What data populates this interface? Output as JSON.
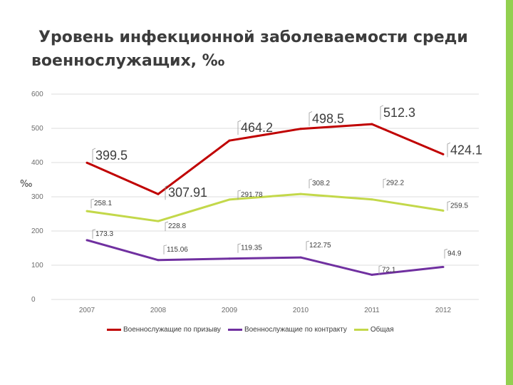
{
  "theme": {
    "accent_bar": "#92d050"
  },
  "title_line1": "Уровень инфекционной заболеваемости среди",
  "title_line2": "военнослужащих, ‰",
  "chart_data": {
    "type": "line",
    "title": "Уровень инфекционной заболеваемости среди военнослужащих, ‰",
    "ylabel": "‰",
    "xlabel": "",
    "x": [
      "2007",
      "2008",
      "2009",
      "2010",
      "2011",
      "2012"
    ],
    "ylim": [
      0,
      600
    ],
    "yticks": [
      0,
      100,
      200,
      300,
      400,
      500,
      600
    ],
    "grid": true,
    "legend_position": "bottom",
    "series": [
      {
        "name": "Военнослужащие по призыву",
        "color": "#c00000",
        "values": [
          399.5,
          307.91,
          464.2,
          498.5,
          512.3,
          424.1
        ],
        "labels": [
          "399.5",
          "307.91",
          "464.2",
          "498.5",
          "512.3",
          "424.1"
        ]
      },
      {
        "name": "Военнослужащие по контракту",
        "color": "#7030a0",
        "values": [
          173.3,
          115.06,
          119.35,
          122.75,
          72.1,
          94.9
        ],
        "labels": [
          "173.3",
          "115.06",
          "119.35",
          "122.75",
          "72.1",
          "94.9"
        ]
      },
      {
        "name": "Общая",
        "color": "#c3d84a",
        "values": [
          258.1,
          228.8,
          291.78,
          308.2,
          292.2,
          259.5
        ],
        "labels": [
          "258.1",
          "228.8",
          "291.78",
          "308.2",
          "292.2",
          "259.5"
        ]
      }
    ]
  }
}
